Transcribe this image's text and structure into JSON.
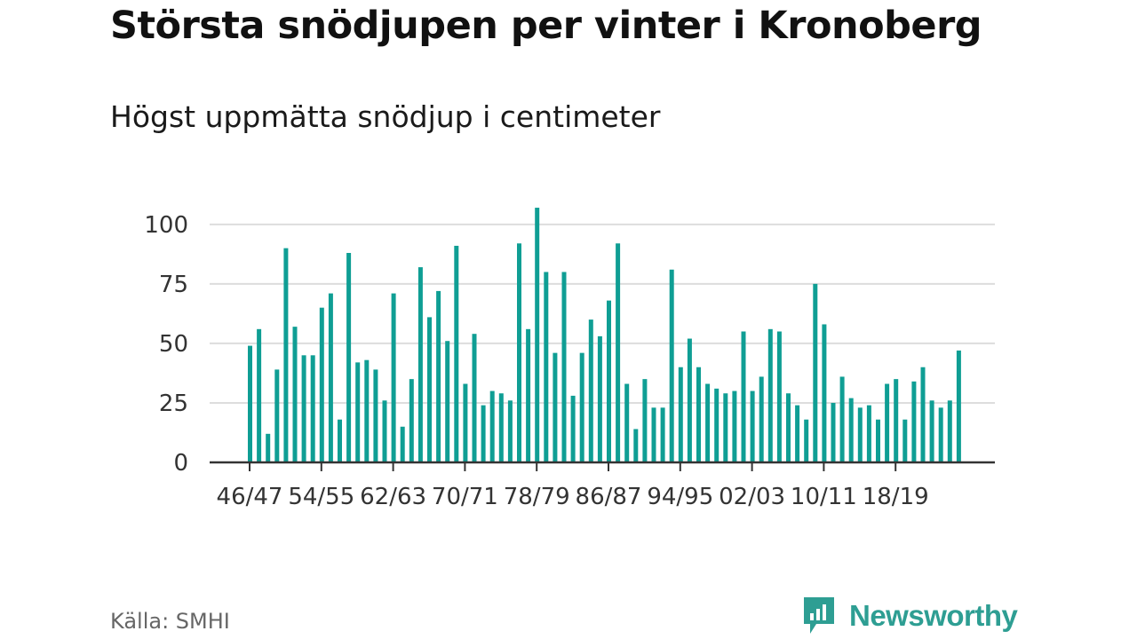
{
  "title": "Största snödjupen per vinter i Kronoberg",
  "subtitle": "Högst uppmätta snödjup i centimeter",
  "source": "Källa: SMHI",
  "brand": {
    "name": "Newsworthy",
    "color": "#2e9e93"
  },
  "colors": {
    "bar": "#0f9e94",
    "grid": "#dddddd",
    "axis": "#333333"
  },
  "chart_data": {
    "type": "bar",
    "title": "Största snödjupen per vinter i Kronoberg",
    "subtitle": "Högst uppmätta snödjup i centimeter",
    "xlabel": "",
    "ylabel": "",
    "ylim": [
      0,
      110
    ],
    "yticks": [
      0,
      25,
      50,
      75,
      100
    ],
    "grid": true,
    "first_season_start": 1946,
    "tick_labels": [
      "46/47",
      "54/55",
      "62/63",
      "70/71",
      "78/79",
      "86/87",
      "94/95",
      "02/03",
      "10/11",
      "18/19"
    ],
    "tick_every": 8,
    "values": [
      49,
      56,
      12,
      39,
      90,
      57,
      45,
      45,
      65,
      71,
      18,
      88,
      42,
      43,
      39,
      26,
      71,
      15,
      35,
      82,
      61,
      72,
      51,
      91,
      33,
      54,
      24,
      30,
      29,
      26,
      92,
      56,
      107,
      80,
      46,
      80,
      28,
      46,
      60,
      53,
      68,
      92,
      33,
      14,
      35,
      23,
      23,
      81,
      40,
      52,
      40,
      33,
      31,
      29,
      30,
      55,
      30,
      36,
      56,
      55,
      29,
      24,
      18,
      75,
      58,
      25,
      36,
      27,
      23,
      24,
      18,
      33,
      35,
      18,
      34,
      40,
      26,
      23,
      26,
      47
    ]
  }
}
